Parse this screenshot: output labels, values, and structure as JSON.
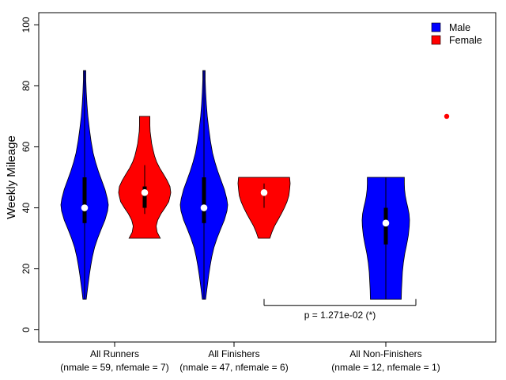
{
  "chart_data": {
    "type": "violin",
    "title": "",
    "xlabel": "",
    "ylabel": "Weekly Mileage",
    "ylim": [
      -4,
      104
    ],
    "yticks": [
      0,
      20,
      40,
      60,
      80,
      100
    ],
    "grid": false,
    "legend": {
      "placement": "top-right",
      "entries": [
        {
          "label": "Male",
          "color": "#0000ff"
        },
        {
          "label": "Female",
          "color": "#ff0000"
        }
      ]
    },
    "groups": [
      {
        "label": "All Runners",
        "sublabel": "(nmale = 59, nfemale = 7)"
      },
      {
        "label": "All Finishers",
        "sublabel": "(nmale = 47, nfemale = 6)"
      },
      {
        "label": "All Non-Finishers",
        "sublabel": "(nmale = 12, nfemale = 1)"
      }
    ],
    "violins": [
      {
        "group": 0,
        "sex": "Male",
        "color": "#0000ff",
        "min": 10,
        "max": 85,
        "q1": 35,
        "q3": 50,
        "median": 40,
        "whisker_low": 10,
        "whisker_high": 85,
        "density": [
          [
            10,
            0.07
          ],
          [
            12,
            0.1
          ],
          [
            15,
            0.15
          ],
          [
            18,
            0.2
          ],
          [
            21,
            0.26
          ],
          [
            24,
            0.33
          ],
          [
            27,
            0.42
          ],
          [
            30,
            0.55
          ],
          [
            33,
            0.7
          ],
          [
            36,
            0.86
          ],
          [
            39,
            0.97
          ],
          [
            41,
            1.0
          ],
          [
            43,
            0.96
          ],
          [
            46,
            0.86
          ],
          [
            49,
            0.72
          ],
          [
            52,
            0.58
          ],
          [
            55,
            0.46
          ],
          [
            58,
            0.36
          ],
          [
            62,
            0.27
          ],
          [
            66,
            0.2
          ],
          [
            70,
            0.14
          ],
          [
            74,
            0.1
          ],
          [
            78,
            0.07
          ],
          [
            82,
            0.05
          ],
          [
            85,
            0.05
          ]
        ]
      },
      {
        "group": 0,
        "sex": "Female",
        "color": "#ff0000",
        "min": 30,
        "max": 70,
        "q1": 40,
        "q3": 47,
        "median": 45,
        "whisker_low": 38,
        "whisker_high": 54,
        "density": [
          [
            30,
            0.6
          ],
          [
            32,
            0.48
          ],
          [
            34,
            0.44
          ],
          [
            36,
            0.5
          ],
          [
            38,
            0.62
          ],
          [
            40,
            0.78
          ],
          [
            42,
            0.92
          ],
          [
            44,
            0.98
          ],
          [
            45,
            1.0
          ],
          [
            47,
            0.97
          ],
          [
            49,
            0.86
          ],
          [
            51,
            0.72
          ],
          [
            53,
            0.58
          ],
          [
            55,
            0.46
          ],
          [
            57,
            0.38
          ],
          [
            59,
            0.32
          ],
          [
            61,
            0.27
          ],
          [
            63,
            0.24
          ],
          [
            65,
            0.21
          ],
          [
            67,
            0.2
          ],
          [
            70,
            0.2
          ]
        ]
      },
      {
        "group": 1,
        "sex": "Male",
        "color": "#0000ff",
        "min": 10,
        "max": 85,
        "q1": 35,
        "q3": 50,
        "median": 40,
        "whisker_low": 10,
        "whisker_high": 85,
        "density": [
          [
            10,
            0.07
          ],
          [
            12,
            0.1
          ],
          [
            15,
            0.15
          ],
          [
            18,
            0.2
          ],
          [
            21,
            0.26
          ],
          [
            24,
            0.33
          ],
          [
            27,
            0.42
          ],
          [
            30,
            0.55
          ],
          [
            33,
            0.7
          ],
          [
            36,
            0.86
          ],
          [
            39,
            0.97
          ],
          [
            41,
            1.0
          ],
          [
            43,
            0.96
          ],
          [
            46,
            0.86
          ],
          [
            49,
            0.72
          ],
          [
            52,
            0.58
          ],
          [
            55,
            0.46
          ],
          [
            58,
            0.36
          ],
          [
            62,
            0.27
          ],
          [
            66,
            0.2
          ],
          [
            70,
            0.14
          ],
          [
            74,
            0.1
          ],
          [
            78,
            0.07
          ],
          [
            82,
            0.05
          ],
          [
            85,
            0.05
          ]
        ]
      },
      {
        "group": 1,
        "sex": "Female",
        "color": "#ff0000",
        "min": 30,
        "max": 50,
        "q1": 44,
        "q3": 46,
        "median": 45,
        "whisker_low": 40,
        "whisker_high": 48,
        "density": [
          [
            30,
            0.22
          ],
          [
            32,
            0.3
          ],
          [
            34,
            0.4
          ],
          [
            36,
            0.53
          ],
          [
            38,
            0.66
          ],
          [
            40,
            0.78
          ],
          [
            42,
            0.88
          ],
          [
            44,
            0.95
          ],
          [
            46,
            0.98
          ],
          [
            48,
            1.0
          ],
          [
            50,
            0.98
          ]
        ]
      },
      {
        "group": 2,
        "sex": "Male",
        "color": "#0000ff",
        "min": 10,
        "max": 50,
        "q1": 28,
        "q3": 40,
        "median": 35,
        "whisker_low": 10,
        "whisker_high": 50,
        "density": [
          [
            10,
            0.65
          ],
          [
            13,
            0.66
          ],
          [
            16,
            0.68
          ],
          [
            19,
            0.7
          ],
          [
            22,
            0.74
          ],
          [
            25,
            0.8
          ],
          [
            28,
            0.88
          ],
          [
            31,
            0.95
          ],
          [
            34,
            0.99
          ],
          [
            36,
            1.0
          ],
          [
            38,
            0.98
          ],
          [
            40,
            0.93
          ],
          [
            42,
            0.87
          ],
          [
            44,
            0.82
          ],
          [
            46,
            0.79
          ],
          [
            48,
            0.78
          ],
          [
            50,
            0.78
          ]
        ]
      }
    ],
    "points": [
      {
        "group": 2,
        "sex": "Female",
        "color": "#ff0000",
        "value": 70
      }
    ],
    "annotations": [
      {
        "text": "p = 1.271e-02 (*)",
        "from_group": 1,
        "to_group": 2,
        "y": 8
      }
    ]
  }
}
